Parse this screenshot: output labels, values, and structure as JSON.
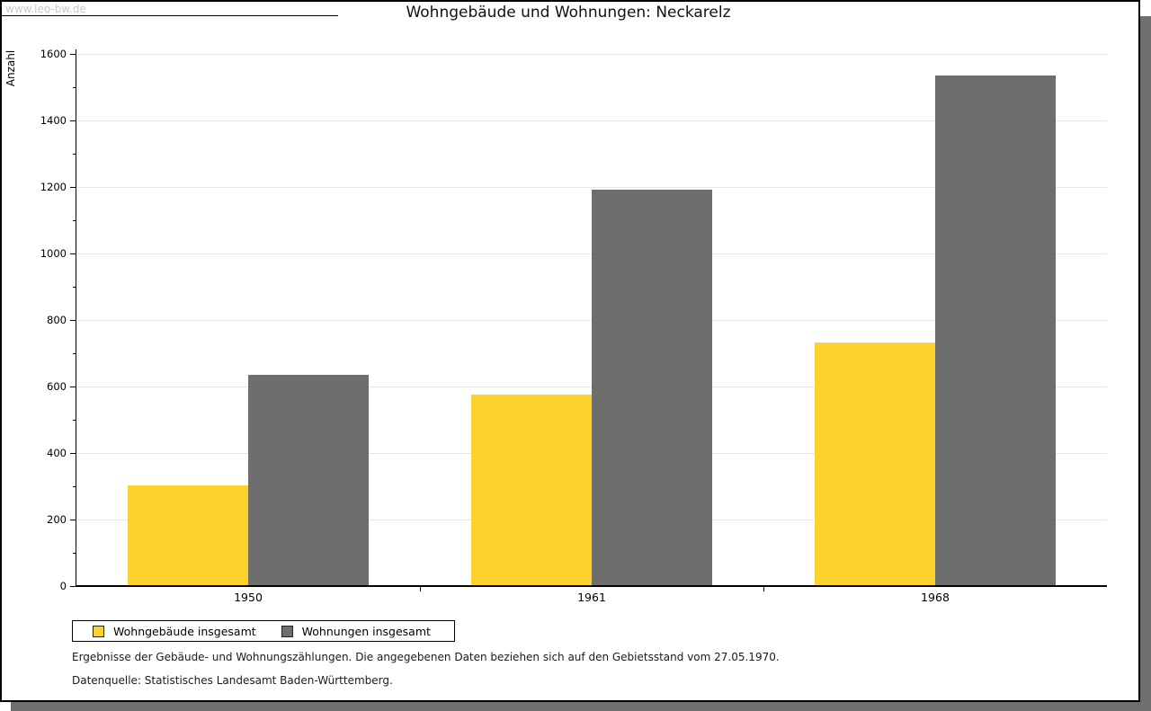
{
  "watermark": "www.leo-bw.de",
  "header": {
    "title": "Wohngebäude und Wohnungen: Neckarelz"
  },
  "chart_data": {
    "type": "bar",
    "title": "Wohngebäude und Wohnungen: Neckarelz",
    "ylabel": "Anzahl",
    "xlabel": "",
    "categories": [
      "1950",
      "1961",
      "1968"
    ],
    "series": [
      {
        "name": "Wohngebäude insgesamt",
        "color": "#FCD32D",
        "values": [
          302,
          575,
          733
        ]
      },
      {
        "name": "Wohnungen insgesamt",
        "color": "#6E6E6E",
        "values": [
          636,
          1192,
          1536
        ]
      }
    ],
    "ylim": [
      0,
      1600
    ],
    "ytick_step": 200,
    "ytick_minor_step": 100,
    "grid": true,
    "gridline_color": "#E7E7E7",
    "legend_position": "bottom-left"
  },
  "footnotes": [
    "Ergebnisse der Gebäude- und Wohnungszählungen. Die angegebenen Daten beziehen sich auf den Gebietsstand vom 27.05.1970.",
    "Datenquelle: Statistisches Landesamt Baden-Württemberg."
  ]
}
